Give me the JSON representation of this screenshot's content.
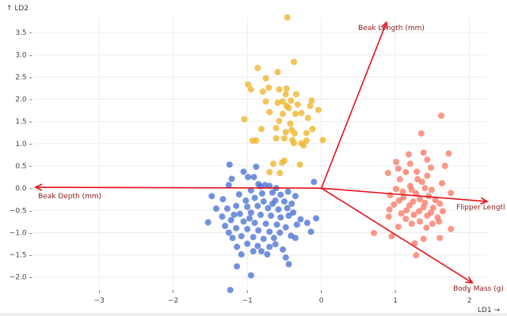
{
  "chart_data": {
    "type": "scatter",
    "xlabel": "LD1 →",
    "ylabel": "↑ LD2",
    "xlim": [
      -3.88,
      2.24
    ],
    "ylim": [
      -2.2,
      3.84
    ],
    "grid": true,
    "x_ticks": [
      -3,
      -2,
      -1,
      0,
      1,
      2
    ],
    "x_tick_labels": [
      "−3",
      "−2",
      "−1",
      "0",
      "1",
      "2"
    ],
    "y_ticks": [
      3.5,
      3.0,
      2.5,
      2.0,
      1.5,
      1.0,
      0.5,
      0.0,
      -0.5,
      -1.0,
      -1.5,
      -2.0
    ],
    "y_tick_labels": [
      "3.5 –",
      "3.0 –",
      "2.5 –",
      "2.0 –",
      "1.5 –",
      "1.0 –",
      "0.5 –",
      "0.0 –",
      "−0.5 –",
      "−1.0 –",
      "−1.5 –",
      "−2.0 –"
    ],
    "series": [
      {
        "color": "#4a72d4",
        "points": [
          [
            -1.24,
            0.53
          ],
          [
            -0.88,
            0.48
          ],
          [
            -1.05,
            0.37
          ],
          [
            -0.99,
            0.25
          ],
          [
            -0.91,
            0.25
          ],
          [
            -1.21,
            0.21
          ],
          [
            -0.1,
            0.14
          ],
          [
            -1.25,
            0.07
          ],
          [
            -0.85,
            0.09
          ],
          [
            -0.76,
            0.07
          ],
          [
            -0.61,
            0.0
          ],
          [
            -1.48,
            -0.18
          ],
          [
            -1.33,
            -0.25
          ],
          [
            -1.11,
            -0.14
          ],
          [
            -0.35,
            -0.18
          ],
          [
            -1.42,
            -0.46
          ],
          [
            -1.27,
            -0.46
          ],
          [
            -1.53,
            -0.77
          ],
          [
            -1.34,
            -0.64
          ],
          [
            -0.07,
            -0.68
          ],
          [
            -0.19,
            -0.78
          ],
          [
            -0.14,
            -0.98
          ],
          [
            -1.25,
            -1.0
          ],
          [
            -1.2,
            -1.12
          ],
          [
            -1.14,
            -1.32
          ],
          [
            -1.08,
            -1.49
          ],
          [
            -1.14,
            -1.76
          ],
          [
            -0.95,
            -1.96
          ],
          [
            -1.23,
            -2.29
          ],
          [
            -0.81,
            -1.42
          ],
          [
            -0.73,
            -1.49
          ],
          [
            -0.48,
            -1.56
          ],
          [
            -0.44,
            -1.71
          ],
          [
            -0.35,
            -1.12
          ],
          [
            -0.41,
            -1.07
          ],
          [
            -0.62,
            -1.26
          ],
          [
            -0.33,
            -0.82
          ],
          [
            -0.44,
            -0.62
          ],
          [
            -0.82,
            0.04
          ],
          [
            -0.7,
            0.05
          ],
          [
            -0.95,
            -0.05
          ],
          [
            -0.8,
            -0.12
          ],
          [
            -0.66,
            -0.1
          ],
          [
            -0.55,
            -0.15
          ],
          [
            -0.45,
            -0.08
          ],
          [
            -1.02,
            -0.28
          ],
          [
            -0.9,
            -0.22
          ],
          [
            -0.78,
            -0.3
          ],
          [
            -0.62,
            -0.28
          ],
          [
            -0.5,
            -0.3
          ],
          [
            -0.4,
            -0.35
          ],
          [
            -1.15,
            -0.4
          ],
          [
            -1.0,
            -0.42
          ],
          [
            -0.86,
            -0.4
          ],
          [
            -0.72,
            -0.45
          ],
          [
            -0.58,
            -0.48
          ],
          [
            -0.46,
            -0.45
          ],
          [
            -1.1,
            -0.58
          ],
          [
            -0.95,
            -0.55
          ],
          [
            -0.82,
            -0.6
          ],
          [
            -0.68,
            -0.62
          ],
          [
            -0.55,
            -0.66
          ],
          [
            -1.22,
            -0.72
          ],
          [
            -1.05,
            -0.75
          ],
          [
            -0.9,
            -0.78
          ],
          [
            -0.75,
            -0.8
          ],
          [
            -0.6,
            -0.82
          ],
          [
            -0.48,
            -0.88
          ],
          [
            -1.15,
            -0.9
          ],
          [
            -1.0,
            -0.92
          ],
          [
            -0.85,
            -0.95
          ],
          [
            -0.7,
            -0.98
          ],
          [
            -0.56,
            -1.0
          ],
          [
            -1.08,
            -1.08
          ],
          [
            -0.92,
            -1.1
          ],
          [
            -0.78,
            -1.14
          ],
          [
            -0.64,
            -1.12
          ],
          [
            -1.0,
            -1.25
          ],
          [
            -0.86,
            -1.3
          ],
          [
            -0.7,
            -1.32
          ],
          [
            -0.92,
            -1.42
          ],
          [
            -1.3,
            -0.85
          ],
          [
            -1.18,
            -0.6
          ],
          [
            -0.38,
            -0.55
          ],
          [
            -0.28,
            -0.7
          ],
          [
            -0.52,
            -1.38
          ],
          [
            -0.97,
            -0.68
          ],
          [
            -0.66,
            -0.35
          ]
        ]
      },
      {
        "color": "#f0b429",
        "points": [
          [
            -0.46,
            3.84
          ],
          [
            -0.37,
            2.84
          ],
          [
            -0.86,
            2.7
          ],
          [
            -0.59,
            2.61
          ],
          [
            -0.75,
            2.47
          ],
          [
            -0.99,
            2.33
          ],
          [
            -0.95,
            2.22
          ],
          [
            -0.71,
            2.26
          ],
          [
            -0.79,
            2.17
          ],
          [
            -0.57,
            2.22
          ],
          [
            -0.47,
            2.24
          ],
          [
            -0.48,
            2.11
          ],
          [
            -0.34,
            2.11
          ],
          [
            -0.75,
            1.95
          ],
          [
            -0.59,
            1.92
          ],
          [
            -0.41,
            1.97
          ],
          [
            -0.13,
            1.97
          ],
          [
            -0.32,
            1.88
          ],
          [
            -0.47,
            1.85
          ],
          [
            -0.15,
            1.85
          ],
          [
            -0.04,
            1.76
          ],
          [
            -0.7,
            1.71
          ],
          [
            -0.52,
            1.67
          ],
          [
            -0.35,
            1.67
          ],
          [
            -0.27,
            1.69
          ],
          [
            -0.18,
            1.58
          ],
          [
            -1.04,
            1.55
          ],
          [
            -0.57,
            1.51
          ],
          [
            -0.81,
            1.33
          ],
          [
            -0.61,
            1.35
          ],
          [
            -0.4,
            1.31
          ],
          [
            -0.12,
            1.33
          ],
          [
            -0.48,
            1.26
          ],
          [
            -0.36,
            1.23
          ],
          [
            -0.2,
            1.24
          ],
          [
            -0.61,
            1.12
          ],
          [
            -0.5,
            1.12
          ],
          [
            -0.39,
            1.08
          ],
          [
            -0.93,
            1.07
          ],
          [
            -0.88,
            1.07
          ],
          [
            -0.27,
            1.01
          ],
          [
            -0.2,
            1.07
          ],
          [
            0.02,
            1.08
          ],
          [
            -0.37,
            1.01
          ],
          [
            -0.24,
            0.96
          ],
          [
            -0.65,
            0.55
          ],
          [
            -0.53,
            0.57
          ],
          [
            -0.5,
            0.62
          ],
          [
            -0.29,
            0.53
          ],
          [
            -0.7,
            0.36
          ],
          [
            -0.56,
            0.34
          ],
          [
            -0.44,
            1.8
          ],
          [
            -0.52,
            1.95
          ],
          [
            -0.42,
            1.45
          ]
        ]
      },
      {
        "color": "#fa7a68",
        "points": [
          [
            1.62,
            1.63
          ],
          [
            1.35,
            1.23
          ],
          [
            1.18,
            0.76
          ],
          [
            1.38,
            0.8
          ],
          [
            1.72,
            0.78
          ],
          [
            1.01,
            0.59
          ],
          [
            1.43,
            0.64
          ],
          [
            1.67,
            0.5
          ],
          [
            1.04,
            0.44
          ],
          [
            1.48,
            0.46
          ],
          [
            0.9,
            0.34
          ],
          [
            1.14,
            0.36
          ],
          [
            1.29,
            0.37
          ],
          [
            1.43,
            0.28
          ],
          [
            1.06,
            0.2
          ],
          [
            1.36,
            0.14
          ],
          [
            1.63,
            0.11
          ],
          [
            1.01,
            -0.02
          ],
          [
            1.22,
            -0.04
          ],
          [
            1.49,
            -0.04
          ],
          [
            1.75,
            -0.11
          ],
          [
            0.93,
            -0.16
          ],
          [
            1.11,
            -0.21
          ],
          [
            1.33,
            -0.25
          ],
          [
            1.54,
            -0.27
          ],
          [
            0.98,
            -0.37
          ],
          [
            1.19,
            -0.39
          ],
          [
            1.38,
            -0.43
          ],
          [
            1.51,
            -0.44
          ],
          [
            0.92,
            -0.48
          ],
          [
            1.64,
            -0.52
          ],
          [
            1.08,
            -0.57
          ],
          [
            1.25,
            -0.6
          ],
          [
            0.91,
            -0.64
          ],
          [
            1.43,
            -0.62
          ],
          [
            1.57,
            -0.66
          ],
          [
            1.14,
            -0.69
          ],
          [
            1.33,
            -0.75
          ],
          [
            1.59,
            -0.75
          ],
          [
            1.04,
            -0.87
          ],
          [
            1.42,
            -0.89
          ],
          [
            1.75,
            -0.92
          ],
          [
            0.71,
            -1.01
          ],
          [
            0.95,
            -1.08
          ],
          [
            1.38,
            -1.14
          ],
          [
            1.6,
            -1.12
          ],
          [
            1.26,
            -1.24
          ],
          [
            1.28,
            -1.51
          ],
          [
            1.2,
            0.55
          ],
          [
            1.3,
            0.2
          ],
          [
            1.2,
            0.05
          ],
          [
            1.4,
            0.0
          ],
          [
            1.1,
            -0.08
          ],
          [
            1.28,
            -0.12
          ],
          [
            1.45,
            -0.18
          ],
          [
            1.05,
            -0.28
          ],
          [
            1.24,
            -0.3
          ],
          [
            1.4,
            -0.33
          ],
          [
            1.6,
            -0.35
          ],
          [
            1.15,
            -0.5
          ],
          [
            1.32,
            -0.52
          ],
          [
            1.48,
            -0.55
          ],
          [
            1.22,
            -0.8
          ],
          [
            1.5,
            -0.8
          ]
        ]
      }
    ],
    "vectors": [
      {
        "label": "Beak Length (mm)",
        "x": 0.88,
        "y": 3.73,
        "label_anchor": "middle"
      },
      {
        "label": "Flipper Lengtl",
        "x": 2.24,
        "y": -0.3,
        "label_anchor": "start"
      },
      {
        "label": "Body Mass (g)",
        "x": 2.04,
        "y": -2.13,
        "label_anchor": "start"
      },
      {
        "label": "Beak Depth (mm)",
        "x": -3.86,
        "y": 0.02,
        "label_anchor": "start"
      }
    ],
    "vector_color": "#e8101a",
    "vector_label_color": "#8b1a1a"
  }
}
